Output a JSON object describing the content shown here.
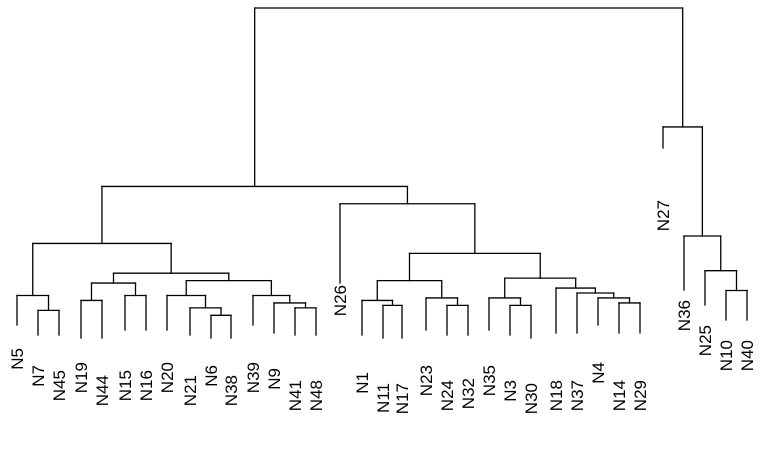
{
  "chart_data": {
    "type": "dendrogram",
    "leaves": [
      "N5",
      "N7",
      "N45",
      "N19",
      "N44",
      "N15",
      "N16",
      "N20",
      "N21",
      "N6",
      "N38",
      "N39",
      "N9",
      "N41",
      "N48",
      "N26",
      "N1",
      "N11",
      "N17",
      "N23",
      "N24",
      "N32",
      "N35",
      "N3",
      "N30",
      "N18",
      "N37",
      "N4",
      "N14",
      "N29",
      "N27",
      "N36",
      "N25",
      "N10",
      "N40"
    ],
    "merges": [
      {
        "a": "N7",
        "b": "N45",
        "height": 0.8
      },
      {
        "a": "N5",
        "b": "N7+N45",
        "height": 1.1
      },
      {
        "a": "N19",
        "b": "N44",
        "height": 1.0
      },
      {
        "a": "N15",
        "b": "N16",
        "height": 1.1
      },
      {
        "a": "N19+N44",
        "b": "N15+N16",
        "height": 1.35
      },
      {
        "a": "N38",
        "b": "N6",
        "height": 0.7
      },
      {
        "a": "N21",
        "b": "N6+N38",
        "height": 0.85
      },
      {
        "a": "N20",
        "b": "N21+N6+N38",
        "height": 1.1
      },
      {
        "a": "N41",
        "b": "N48",
        "height": 0.85
      },
      {
        "a": "N9",
        "b": "N41+N48",
        "height": 0.95
      },
      {
        "a": "N39",
        "b": "N9+N41+N48",
        "height": 1.1
      },
      {
        "a": "N20..N38",
        "b": "N39..N48",
        "height": 1.4
      },
      {
        "a": "N19..N16",
        "b": "N20..N48",
        "height": 1.55
      },
      {
        "a": "N5+N7+N45",
        "b": "N19..N48",
        "height": 2.15
      },
      {
        "a": "N11",
        "b": "N17",
        "height": 0.9
      },
      {
        "a": "N1",
        "b": "N11+N17",
        "height": 1.0
      },
      {
        "a": "N24",
        "b": "N32",
        "height": 0.9
      },
      {
        "a": "N23",
        "b": "N24+N32",
        "height": 1.05
      },
      {
        "a": "N1..N17",
        "b": "N23..N32",
        "height": 1.4
      },
      {
        "a": "N3",
        "b": "N30",
        "height": 0.9
      },
      {
        "a": "N35",
        "b": "N3+N30",
        "height": 1.05
      },
      {
        "a": "N14",
        "b": "N29",
        "height": 0.95
      },
      {
        "a": "N4",
        "b": "N14+N29",
        "height": 1.05
      },
      {
        "a": "N37",
        "b": "N4+N14+N29",
        "height": 1.15
      },
      {
        "a": "N18",
        "b": "N37+N4+N14+N29",
        "height": 1.25
      },
      {
        "a": "N35+N3+N30",
        "b": "N18..N29",
        "height": 1.45
      },
      {
        "a": "N1..N32",
        "b": "N35..N29",
        "height": 1.95
      },
      {
        "a": "N26",
        "b": "N1..N29",
        "height": 2.95
      },
      {
        "a": "N5..N48",
        "b": "N26..N29",
        "height": 3.3
      },
      {
        "a": "N10",
        "b": "N40",
        "height": 1.2
      },
      {
        "a": "N25",
        "b": "N10+N40",
        "height": 1.6
      },
      {
        "a": "N36",
        "b": "N25+N10+N40",
        "height": 2.3
      },
      {
        "a": "N27",
        "b": "N36+N25+N10+N40",
        "height": 4.5
      },
      {
        "a": "N5..N29",
        "b": "N27..N40",
        "height": 6.9
      }
    ]
  }
}
